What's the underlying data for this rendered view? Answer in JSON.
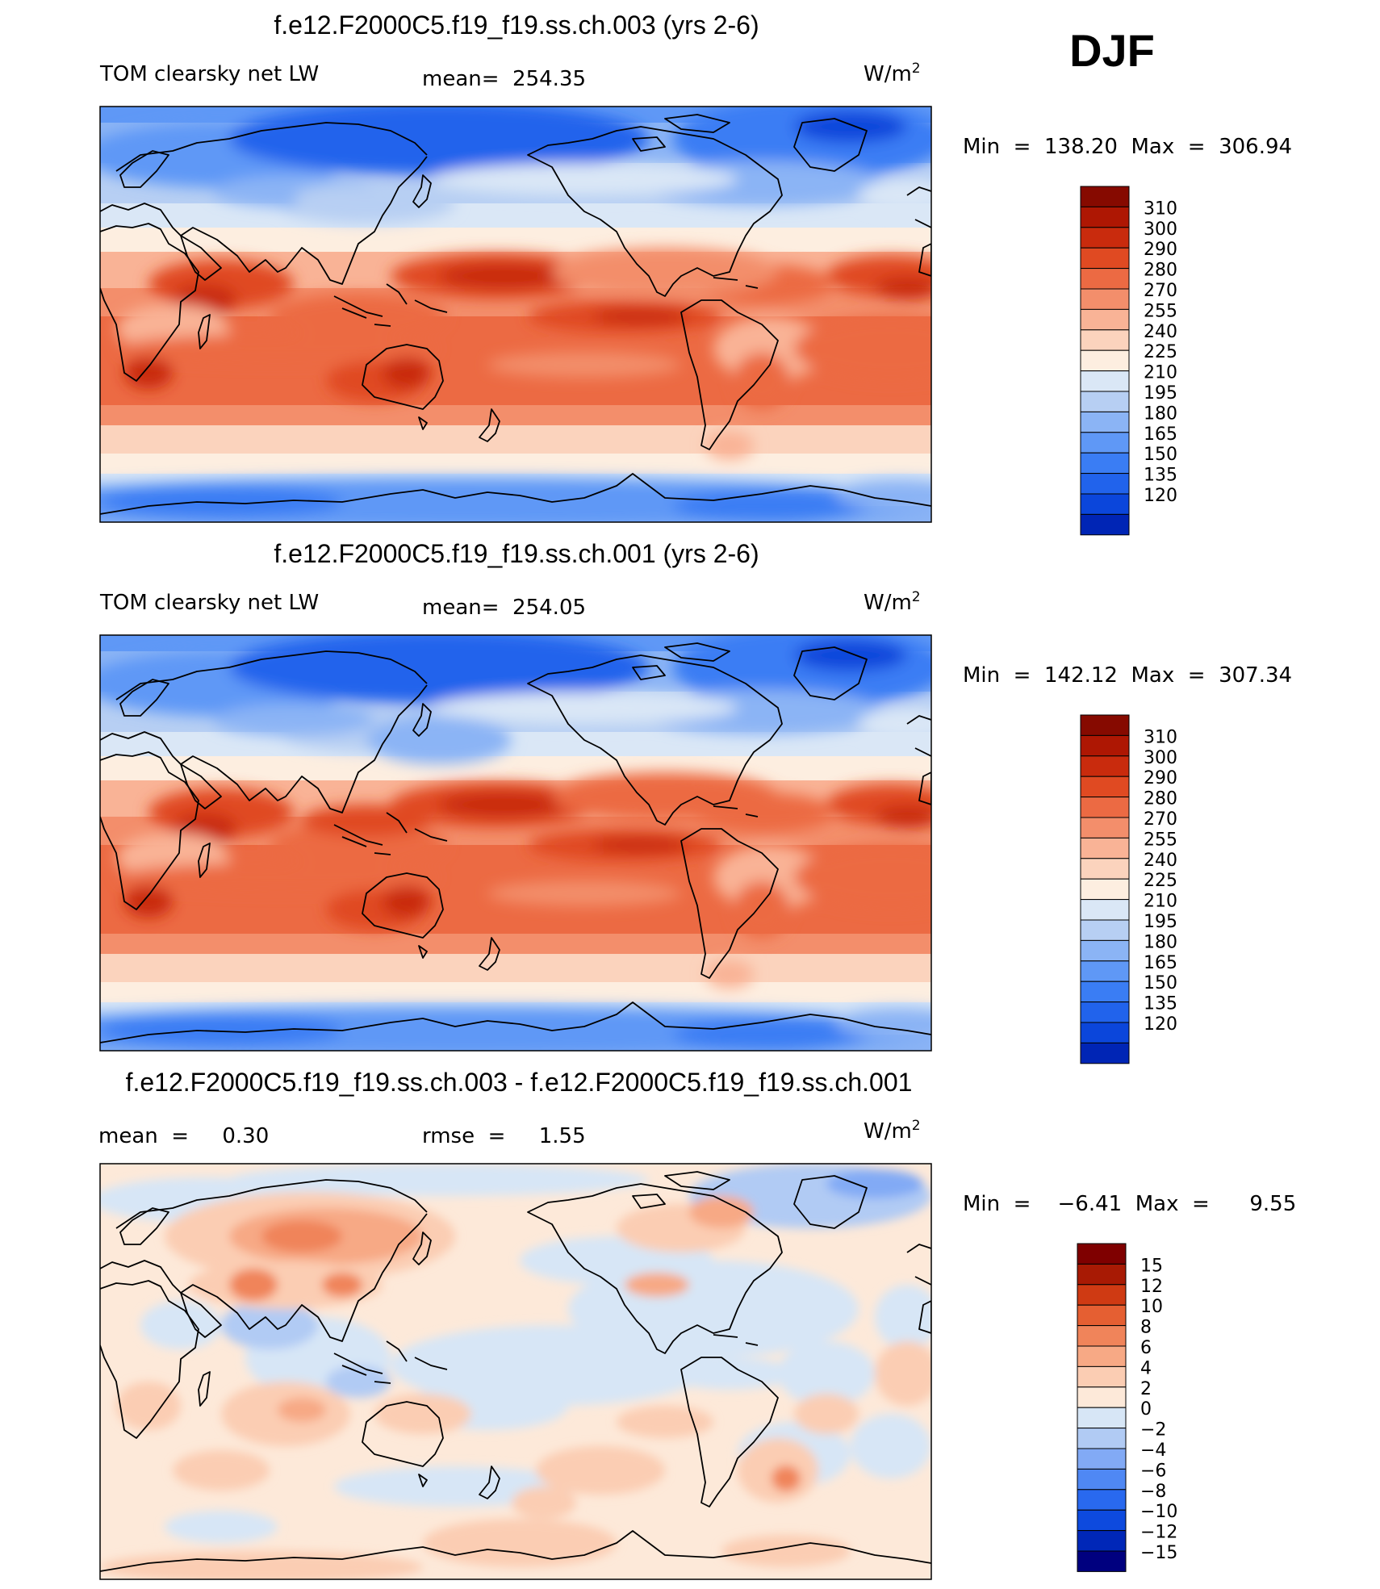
{
  "season": "DJF",
  "colors": {
    "abs_scale": [
      "#00007f",
      "#0025b5",
      "#0b46db",
      "#2163ec",
      "#3a7df4",
      "#5f98f6",
      "#8bb4f5",
      "#b7cff3",
      "#dae7f6",
      "#fdeee0",
      "#fbd3bd",
      "#f9b396",
      "#f38e6b",
      "#ec6a43",
      "#e04a22",
      "#c92b0d",
      "#ae1703",
      "#860a00"
    ],
    "diff_scale": [
      "#00007f",
      "#0027b8",
      "#0d4ade",
      "#2969ef",
      "#4f88f4",
      "#82aaf5",
      "#b1cbf4",
      "#d7e6f6",
      "#fde9d9",
      "#fbcdb3",
      "#f7a985",
      "#f0845a",
      "#e55f32",
      "#cf3a13",
      "#a81a04",
      "#7f0000"
    ]
  },
  "chart_data": [
    {
      "type": "heatmap",
      "id": "panel_1",
      "title": "f.e12.F2000C5.f19_f19.ss.ch.003 (yrs 2-6)",
      "left_label": "TOM clearsky net LW",
      "mean_text": "mean=  254.35",
      "units": "W/m",
      "units_sup": "2",
      "minmax_text": "Min  =  138.20  Max  =  306.94",
      "colorbar_levels": [
        "310",
        "300",
        "290",
        "280",
        "270",
        "255",
        "240",
        "225",
        "210",
        "195",
        "180",
        "165",
        "150",
        "135",
        "120"
      ]
    },
    {
      "type": "heatmap",
      "id": "panel_2",
      "title": "f.e12.F2000C5.f19_f19.ss.ch.001 (yrs 2-6)",
      "left_label": "TOM clearsky net LW",
      "mean_text": "mean=  254.05",
      "units": "W/m",
      "units_sup": "2",
      "minmax_text": "Min  =  142.12  Max  =  307.34",
      "colorbar_levels": [
        "310",
        "300",
        "290",
        "280",
        "270",
        "255",
        "240",
        "225",
        "210",
        "195",
        "180",
        "165",
        "150",
        "135",
        "120"
      ]
    },
    {
      "type": "heatmap",
      "id": "panel_3",
      "title": "f.e12.F2000C5.f19_f19.ss.ch.003 - f.e12.F2000C5.f19_f19.ss.ch.001",
      "left_label": "mean  =     0.30",
      "mean_text": "rmse  =     1.55",
      "units": "W/m",
      "units_sup": "2",
      "minmax_text": "Min  =    −6.41  Max  =      9.55",
      "colorbar_levels": [
        "15",
        "12",
        "10",
        "8",
        "6",
        "4",
        "2",
        "0",
        "−2",
        "−4",
        "−6",
        "−8",
        "−10",
        "−12",
        "−15"
      ]
    }
  ]
}
